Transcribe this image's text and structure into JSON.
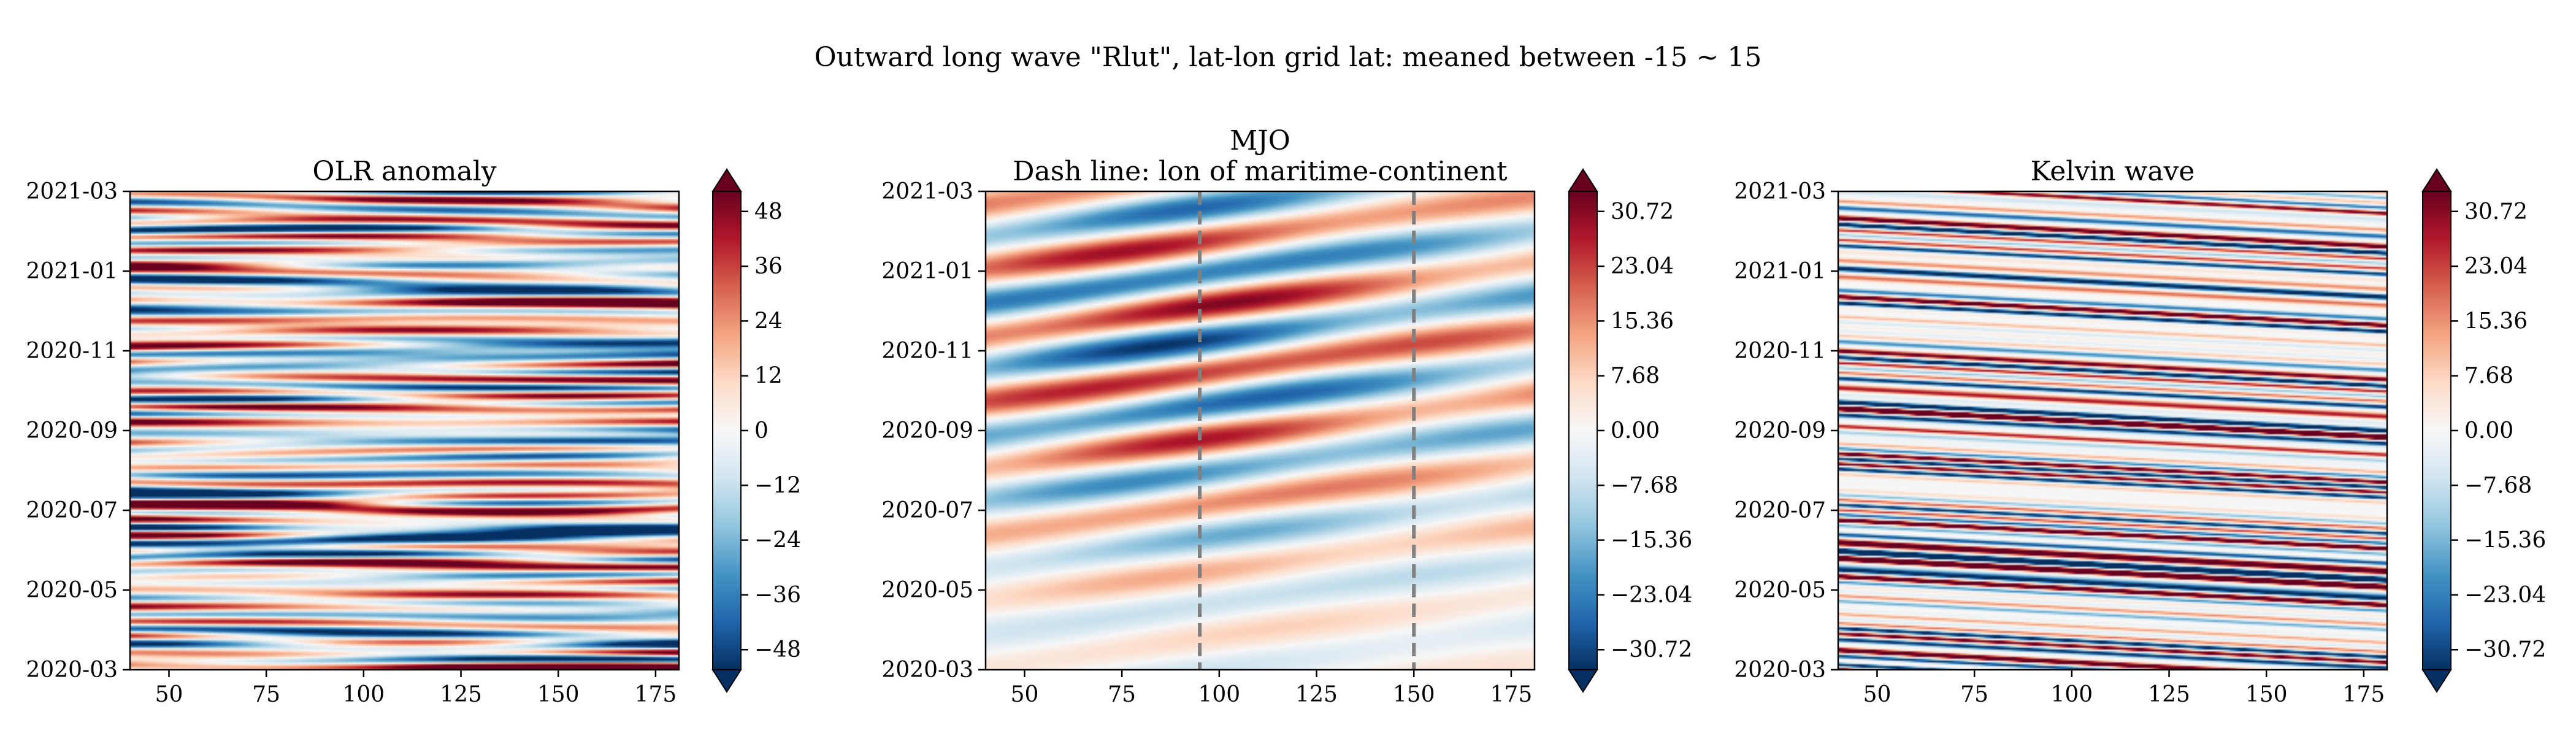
{
  "suptitle": "Outward long wave \"Rlut\", lat-lon grid lat: meaned between -15 ~ 15",
  "colormap": "RdBu_r",
  "colors": {
    "cmap_low": "#053061",
    "cmap_mid": "#f7f7f7",
    "cmap_high": "#67001f",
    "dash_line": "#808080"
  },
  "chart_data": [
    {
      "type": "heatmap",
      "title_lines": [
        "OLR anomaly"
      ],
      "x_range": [
        40,
        181
      ],
      "x_ticks": [
        "50",
        "75",
        "100",
        "125",
        "150",
        "175"
      ],
      "y_range": [
        "2020-03",
        "2021-03"
      ],
      "y_ticks": [
        "2020-03",
        "2020-05",
        "2020-07",
        "2020-09",
        "2020-11",
        "2021-01",
        "2021-03"
      ],
      "colorbar_range": [
        -48,
        48
      ],
      "colorbar_ticks": [
        "48",
        "36",
        "24",
        "12",
        "0",
        "−12",
        "−24",
        "−36",
        "−48"
      ],
      "colorbar_extend": "both",
      "pattern": "noise"
    },
    {
      "type": "heatmap",
      "title_lines": [
        "MJO",
        "Dash line: lon of maritime-continent"
      ],
      "x_range": [
        40,
        181
      ],
      "x_ticks": [
        "50",
        "75",
        "100",
        "125",
        "150",
        "175"
      ],
      "y_range": [
        "2020-03",
        "2021-03"
      ],
      "y_ticks": [
        "2020-03",
        "2020-05",
        "2020-07",
        "2020-09",
        "2020-11",
        "2021-01",
        "2021-03"
      ],
      "colorbar_range": [
        -30.72,
        30.72
      ],
      "colorbar_ticks": [
        "30.72",
        "23.04",
        "15.36",
        "7.68",
        "0.00",
        "−7.68",
        "−15.36",
        "−23.04",
        "−30.72"
      ],
      "colorbar_extend": "both",
      "vlines": [
        95,
        150
      ],
      "pattern": "mjo"
    },
    {
      "type": "heatmap",
      "title_lines": [
        "Kelvin wave"
      ],
      "x_range": [
        40,
        181
      ],
      "x_ticks": [
        "50",
        "75",
        "100",
        "125",
        "150",
        "175"
      ],
      "y_range": [
        "2020-03",
        "2021-03"
      ],
      "y_ticks": [
        "2020-03",
        "2020-05",
        "2020-07",
        "2020-09",
        "2020-11",
        "2021-01",
        "2021-03"
      ],
      "colorbar_range": [
        -30.72,
        30.72
      ],
      "colorbar_ticks": [
        "30.72",
        "23.04",
        "15.36",
        "7.68",
        "0.00",
        "−7.68",
        "−15.36",
        "−23.04",
        "−30.72"
      ],
      "colorbar_extend": "both",
      "pattern": "kelvin"
    }
  ]
}
